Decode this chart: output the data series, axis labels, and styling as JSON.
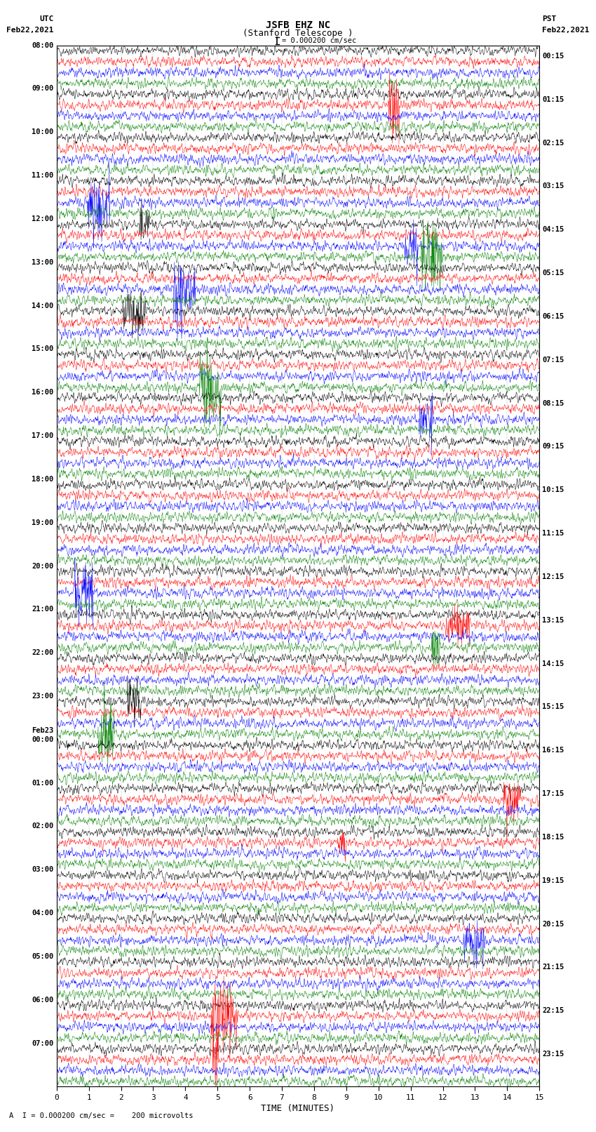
{
  "title_line1": "JSFB EHZ NC",
  "title_line2": "(Stanford Telescope )",
  "scale_label": "= 0.000200 cm/sec",
  "bottom_label": "A  I = 0.000200 cm/sec =    200 microvolts",
  "xlabel": "TIME (MINUTES)",
  "utc_label": "UTC",
  "utc_date": "Feb22,2021",
  "pst_label": "PST",
  "pst_date": "Feb22,2021",
  "left_times": [
    [
      "08:00"
    ],
    [
      "09:00"
    ],
    [
      "10:00"
    ],
    [
      "11:00"
    ],
    [
      "12:00"
    ],
    [
      "13:00"
    ],
    [
      "14:00"
    ],
    [
      "15:00"
    ],
    [
      "16:00"
    ],
    [
      "17:00"
    ],
    [
      "18:00"
    ],
    [
      "19:00"
    ],
    [
      "20:00"
    ],
    [
      "21:00"
    ],
    [
      "22:00"
    ],
    [
      "23:00"
    ],
    [
      "Feb23",
      "00:00"
    ],
    [
      "01:00"
    ],
    [
      "02:00"
    ],
    [
      "03:00"
    ],
    [
      "04:00"
    ],
    [
      "05:00"
    ],
    [
      "06:00"
    ],
    [
      "07:00"
    ]
  ],
  "right_times": [
    "00:15",
    "01:15",
    "02:15",
    "03:15",
    "04:15",
    "05:15",
    "06:15",
    "07:15",
    "08:15",
    "09:15",
    "10:15",
    "11:15",
    "12:15",
    "13:15",
    "14:15",
    "15:15",
    "16:15",
    "17:15",
    "18:15",
    "19:15",
    "20:15",
    "21:15",
    "22:15",
    "23:15"
  ],
  "trace_colors": [
    "black",
    "red",
    "blue",
    "green"
  ],
  "bg_color": "white",
  "n_hours": 24,
  "traces_per_hour": 4,
  "xmin": 0,
  "xmax": 15,
  "figure_width": 8.5,
  "figure_height": 16.13,
  "dpi": 100,
  "font_family": "monospace"
}
